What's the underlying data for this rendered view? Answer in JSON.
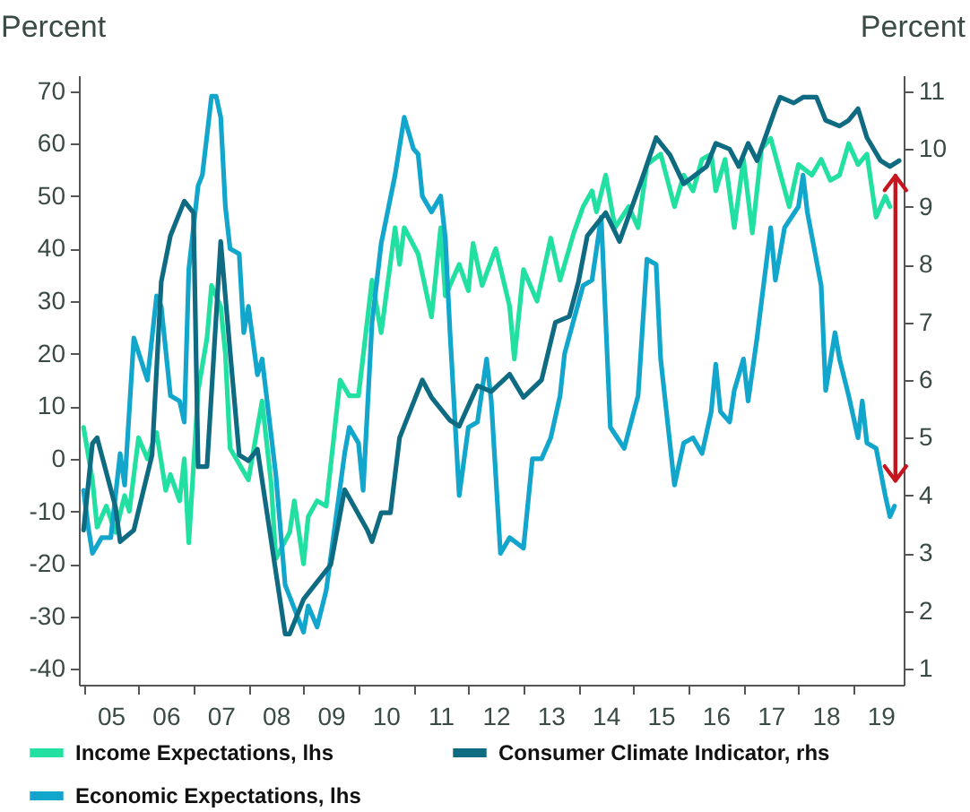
{
  "chart_data": {
    "type": "line",
    "ylabel": "Percent",
    "y2label": "Percent",
    "xlim": [
      "2004-12",
      "2019-12"
    ],
    "ylim": [
      -43,
      73
    ],
    "y2lim": [
      0.72,
      11.28
    ],
    "xticks": [
      {
        "value": "2005-01",
        "label": null
      },
      {
        "value": "2005-07",
        "label": "05"
      },
      {
        "value": "2006-01",
        "label": null
      },
      {
        "value": "2006-07",
        "label": "06"
      },
      {
        "value": "2007-01",
        "label": null
      },
      {
        "value": "2007-07",
        "label": "07"
      },
      {
        "value": "2008-01",
        "label": null
      },
      {
        "value": "2008-07",
        "label": "08"
      },
      {
        "value": "2009-01",
        "label": null
      },
      {
        "value": "2009-07",
        "label": "09"
      },
      {
        "value": "2010-01",
        "label": null
      },
      {
        "value": "2010-07",
        "label": "10"
      },
      {
        "value": "2011-01",
        "label": null
      },
      {
        "value": "2011-07",
        "label": "11"
      },
      {
        "value": "2012-01",
        "label": null
      },
      {
        "value": "2012-07",
        "label": "12"
      },
      {
        "value": "2013-01",
        "label": null
      },
      {
        "value": "2013-07",
        "label": "13"
      },
      {
        "value": "2014-01",
        "label": null
      },
      {
        "value": "2014-07",
        "label": "14"
      },
      {
        "value": "2015-01",
        "label": null
      },
      {
        "value": "2015-07",
        "label": "15"
      },
      {
        "value": "2016-01",
        "label": null
      },
      {
        "value": "2016-07",
        "label": "16"
      },
      {
        "value": "2017-01",
        "label": null
      },
      {
        "value": "2017-07",
        "label": "17"
      },
      {
        "value": "2018-01",
        "label": null
      },
      {
        "value": "2018-07",
        "label": "18"
      },
      {
        "value": "2019-01",
        "label": null
      },
      {
        "value": "2019-07",
        "label": "19"
      }
    ],
    "yticks": [
      -40,
      -30,
      -20,
      -10,
      0,
      10,
      20,
      30,
      40,
      50,
      60,
      70
    ],
    "y2ticks": [
      1,
      2,
      3,
      4,
      5,
      6,
      7,
      8,
      9,
      10,
      11
    ],
    "legend": "bottom",
    "series": [
      {
        "name": "Income Expectations, lhs",
        "color": "#22e0a2",
        "x": [
          "2005-01",
          "2005-03",
          "2005-04",
          "2005-06",
          "2005-08",
          "2005-10",
          "2005-11",
          "2006-01",
          "2006-03",
          "2006-05",
          "2006-07",
          "2006-08",
          "2006-10",
          "2006-11",
          "2006-12",
          "2007-02",
          "2007-04",
          "2007-05",
          "2007-07",
          "2007-08",
          "2007-09",
          "2007-11",
          "2008-01",
          "2008-04",
          "2008-06",
          "2008-07",
          "2008-10",
          "2008-11",
          "2009-01",
          "2009-02",
          "2009-04",
          "2009-06",
          "2009-09",
          "2009-11",
          "2010-01",
          "2010-04",
          "2010-06",
          "2010-09",
          "2010-10",
          "2010-11",
          "2011-02",
          "2011-05",
          "2011-07",
          "2011-08",
          "2011-11",
          "2012-01",
          "2012-02",
          "2012-04",
          "2012-07",
          "2012-10",
          "2012-11",
          "2013-01",
          "2013-04",
          "2013-07",
          "2013-09",
          "2013-12",
          "2014-02",
          "2014-04",
          "2014-05",
          "2014-07",
          "2014-09",
          "2014-12",
          "2015-02",
          "2015-04",
          "2015-07",
          "2015-10",
          "2015-12",
          "2016-02",
          "2016-04",
          "2016-06",
          "2016-07",
          "2016-09",
          "2016-11",
          "2017-01",
          "2017-03",
          "2017-05",
          "2017-07",
          "2017-11",
          "2018-01",
          "2018-04",
          "2018-06",
          "2018-08",
          "2018-10",
          "2018-12",
          "2019-02",
          "2019-04",
          "2019-06",
          "2019-08",
          "2019-09"
        ],
        "values": [
          6,
          -4,
          -13,
          -9,
          -14,
          -7,
          -10,
          4,
          0,
          5,
          -6,
          -3,
          -8,
          0,
          -16,
          13,
          23,
          33,
          29,
          20,
          2,
          -1,
          -4,
          11,
          -5,
          -19,
          -14,
          -8,
          -20,
          -11,
          -8,
          -9,
          15,
          12,
          12,
          34,
          24,
          44,
          37,
          44,
          39,
          27,
          44,
          31,
          37,
          32,
          41,
          33,
          40,
          29,
          19,
          36,
          30,
          42,
          34,
          43,
          48,
          51,
          47,
          54,
          44,
          48,
          44,
          56,
          58,
          48,
          54,
          51,
          57,
          58,
          51,
          57,
          44,
          57,
          43,
          59,
          61,
          48,
          56,
          54,
          57,
          53,
          54,
          60,
          56,
          58,
          46,
          50,
          48
        ]
      },
      {
        "name": "Consumer Climate Indicator, rhs",
        "color": "#0e6b82",
        "axis": "y2",
        "x": [
          "2005-01",
          "2005-03",
          "2005-04",
          "2005-08",
          "2005-09",
          "2005-12",
          "2006-04",
          "2006-06",
          "2006-08",
          "2006-11",
          "2007-01",
          "2007-02",
          "2007-04",
          "2007-07",
          "2007-09",
          "2007-11",
          "2008-01",
          "2008-03",
          "2008-09",
          "2008-10",
          "2009-01",
          "2009-04",
          "2009-07",
          "2009-10",
          "2010-03",
          "2010-04",
          "2010-06",
          "2010-08",
          "2010-10",
          "2011-03",
          "2011-05",
          "2011-09",
          "2011-11",
          "2012-03",
          "2012-06",
          "2012-10",
          "2013-01",
          "2013-05",
          "2013-08",
          "2013-11",
          "2014-01",
          "2014-03",
          "2014-07",
          "2014-10",
          "2015-03",
          "2015-06",
          "2015-09",
          "2015-12",
          "2016-05",
          "2016-07",
          "2016-10",
          "2016-12",
          "2017-02",
          "2017-04",
          "2017-08",
          "2017-09",
          "2017-12",
          "2018-02",
          "2018-05",
          "2018-07",
          "2018-10",
          "2018-12",
          "2019-02",
          "2019-04",
          "2019-07",
          "2019-09",
          "2019-11"
        ],
        "values": [
          3.4,
          4.9,
          5.0,
          3.8,
          3.2,
          3.4,
          4.7,
          7.7,
          8.5,
          9.1,
          8.9,
          4.5,
          4.5,
          8.4,
          6.5,
          4.7,
          4.6,
          4.8,
          1.6,
          1.6,
          2.2,
          2.5,
          2.8,
          4.1,
          3.4,
          3.2,
          3.7,
          3.7,
          5.0,
          6.0,
          5.7,
          5.3,
          5.2,
          5.9,
          5.8,
          6.1,
          5.7,
          6.0,
          7.0,
          7.1,
          7.7,
          8.5,
          8.9,
          8.4,
          9.5,
          10.2,
          9.9,
          9.4,
          9.7,
          10.1,
          10.0,
          9.7,
          10.1,
          9.8,
          10.7,
          10.9,
          10.8,
          10.9,
          10.9,
          10.5,
          10.4,
          10.5,
          10.7,
          10.2,
          9.8,
          9.7,
          9.8
        ]
      },
      {
        "name": "Economic Expectations, lhs",
        "color": "#12a6cc",
        "x": [
          "2005-01",
          "2005-02",
          "2005-03",
          "2005-05",
          "2005-07",
          "2005-09",
          "2005-10",
          "2005-12",
          "2006-03",
          "2006-05",
          "2006-06",
          "2006-08",
          "2006-10",
          "2006-11",
          "2006-12",
          "2007-02",
          "2007-03",
          "2007-05",
          "2007-06",
          "2007-07",
          "2007-08",
          "2007-09",
          "2007-11",
          "2007-12",
          "2008-01",
          "2008-03",
          "2008-04",
          "2008-07",
          "2008-09",
          "2009-01",
          "2009-02",
          "2009-04",
          "2009-06",
          "2009-10",
          "2009-11",
          "2010-01",
          "2010-02",
          "2010-04",
          "2010-06",
          "2010-09",
          "2010-11",
          "2011-01",
          "2011-02",
          "2011-03",
          "2011-05",
          "2011-07",
          "2011-08",
          "2011-09",
          "2011-11",
          "2012-01",
          "2012-03",
          "2012-05",
          "2012-06",
          "2012-08",
          "2012-10",
          "2013-01",
          "2013-03",
          "2013-05",
          "2013-07",
          "2013-09",
          "2013-10",
          "2014-02",
          "2014-04",
          "2014-06",
          "2014-08",
          "2014-11",
          "2015-02",
          "2015-04",
          "2015-06",
          "2015-07",
          "2015-10",
          "2015-12",
          "2016-02",
          "2016-04",
          "2016-06",
          "2016-07",
          "2016-08",
          "2016-10",
          "2016-11",
          "2017-01",
          "2017-02",
          "2017-04",
          "2017-07",
          "2017-08",
          "2017-10",
          "2018-01",
          "2018-02",
          "2018-03",
          "2018-06",
          "2018-07",
          "2018-09",
          "2018-10",
          "2018-12",
          "2019-02",
          "2019-03",
          "2019-04",
          "2019-06",
          "2019-08",
          "2019-09",
          "2019-10"
        ],
        "values": [
          -6,
          -13,
          -18,
          -15,
          -15,
          1,
          -5,
          23,
          15,
          31,
          29,
          12,
          11,
          7,
          36,
          52,
          54,
          69,
          69,
          65,
          48,
          40,
          39,
          24,
          29,
          16,
          19,
          -3,
          -24,
          -33,
          -28,
          -32,
          -25,
          1,
          6,
          3,
          -6,
          26,
          41,
          54,
          65,
          59,
          58,
          50,
          47,
          50,
          42,
          24,
          -7,
          6,
          7,
          19,
          11,
          -18,
          -15,
          -17,
          0,
          0,
          4,
          12,
          20,
          33,
          34,
          46,
          6,
          2,
          12,
          38,
          37,
          19,
          -5,
          3,
          4,
          1,
          9,
          18,
          9,
          7,
          13,
          19,
          11,
          23,
          44,
          34,
          44,
          48,
          54,
          47,
          33,
          13,
          24,
          19,
          12,
          4,
          11,
          3,
          2,
          -7,
          -11,
          -9
        ]
      }
    ]
  }
}
